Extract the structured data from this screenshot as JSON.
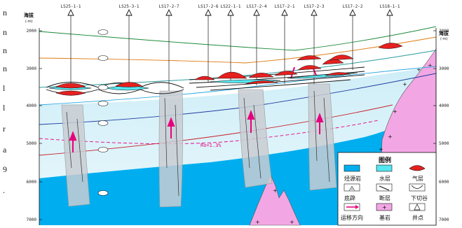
{
  "margin_chars": [
    "n",
    "n",
    "n",
    "n",
    "l",
    "l",
    "r",
    "a",
    "9",
    "."
  ],
  "axis": {
    "title": "海拔",
    "unit": "(-m)",
    "ticks": [
      "2000",
      "3000",
      "4000",
      "5000",
      "6000",
      "7000"
    ]
  },
  "wells": [
    "LS25-1-1",
    "LS25-3-1",
    "LS17-2-7",
    "LS17-2-6",
    "LS22-1-1",
    "LS17-2-4",
    "LS17-2-1",
    "LS17-2-3",
    "LS17-2-2",
    "LS18-1-1"
  ],
  "ro_label": "Ro=1.3%",
  "legend": {
    "title": "图例",
    "items": [
      "烃源岩",
      "水层",
      "气层",
      "底辟",
      "断层",
      "下切谷",
      "运移方向",
      "基岩",
      "井点"
    ]
  },
  "colors": {
    "source_rock": "#00aeef",
    "water_layer": "#55e6f0",
    "gas_layer": "#e5201f",
    "basement": "#f2a7e4",
    "migration": "#e6007e",
    "diapir": "#c8cdd2"
  }
}
